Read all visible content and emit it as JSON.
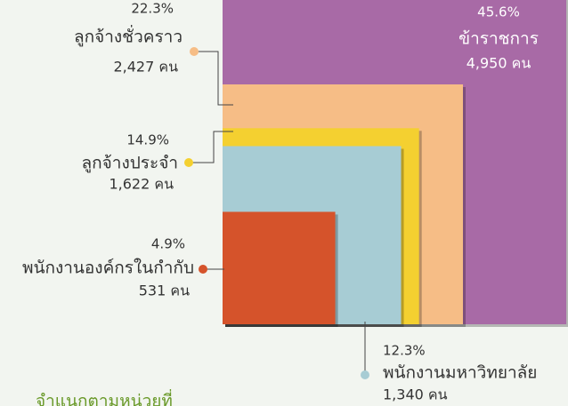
{
  "chart_data": {
    "type": "nested-square",
    "categories": [
      "ข้าราชการ",
      "ลูกจ้างชั่วคราว",
      "ลูกจ้างประจำ",
      "พนักงานมหาวิทยาลัย",
      "พนักงานองค์กรในกำกับ"
    ],
    "series": [
      {
        "name": "percent",
        "values": [
          45.6,
          22.3,
          14.9,
          12.3,
          4.9
        ],
        "value_labels": [
          "45.6%",
          "22.3%",
          "14.9%",
          "12.3%",
          "4.9%"
        ]
      },
      {
        "name": "count",
        "values": [
          4950,
          2427,
          1622,
          1340,
          531
        ],
        "value_labels": [
          "4,950 คน",
          "2,427 คน",
          "1,622 คน",
          "1,340 คน",
          "531 คน"
        ]
      }
    ],
    "colors": [
      "#a86aa6",
      "#f6bd86",
      "#f4d030",
      "#a7ccd4",
      "#d5532b"
    ],
    "caption": "จำแนกตามหน่วยที่"
  }
}
